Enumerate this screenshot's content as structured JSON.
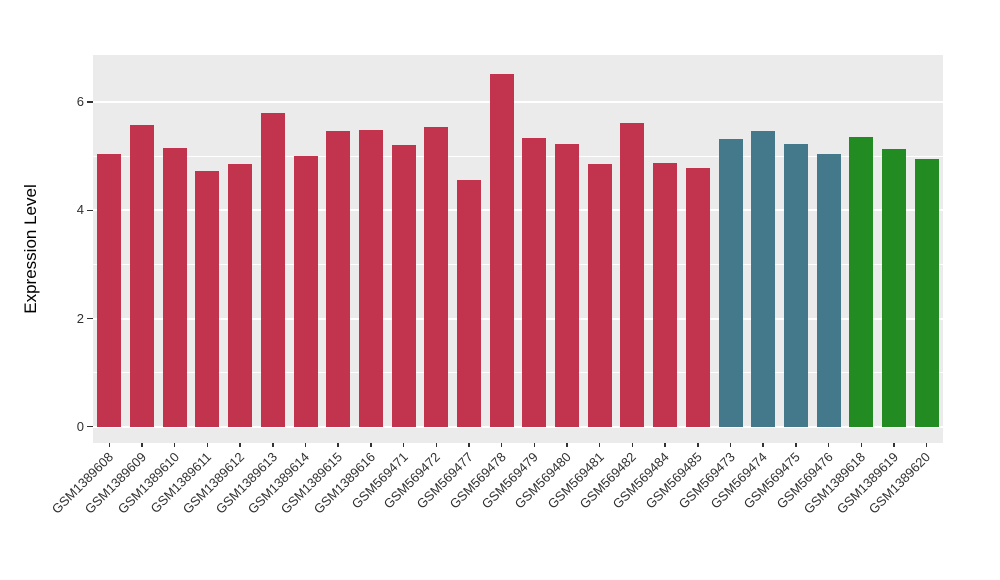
{
  "chart_data": {
    "type": "bar",
    "title": "",
    "xlabel": "",
    "ylabel": "Expression Level",
    "ylim": [
      0,
      6.5
    ],
    "yticks": [
      0,
      2,
      4,
      6
    ],
    "yticks_minor": [
      1,
      3,
      5
    ],
    "grid": "on",
    "legend": "none",
    "categories": [
      "GSM1389608",
      "GSM1389609",
      "GSM1389610",
      "GSM1389611",
      "GSM1389612",
      "GSM1389613",
      "GSM1389614",
      "GSM1389615",
      "GSM1389616",
      "GSM569471",
      "GSM569472",
      "GSM569477",
      "GSM569478",
      "GSM569479",
      "GSM569480",
      "GSM569481",
      "GSM569482",
      "GSM569484",
      "GSM569485",
      "GSM569473",
      "GSM569474",
      "GSM569475",
      "GSM569476",
      "GSM1389618",
      "GSM1389619",
      "GSM1389620"
    ],
    "values": [
      5.05,
      5.58,
      5.15,
      4.73,
      4.86,
      5.8,
      5.0,
      5.47,
      5.48,
      5.21,
      5.54,
      4.56,
      6.52,
      5.34,
      5.22,
      4.86,
      5.62,
      4.87,
      4.79,
      5.31,
      5.47,
      5.22,
      5.05,
      5.36,
      5.13,
      4.95
    ],
    "groups": [
      "red",
      "red",
      "red",
      "red",
      "red",
      "red",
      "red",
      "red",
      "red",
      "red",
      "red",
      "red",
      "red",
      "red",
      "red",
      "red",
      "red",
      "red",
      "red",
      "teal",
      "teal",
      "teal",
      "teal",
      "green",
      "green",
      "green"
    ]
  },
  "colors": {
    "background": "#FFFFFF",
    "panel": "#EBEBEB",
    "grid": "#FFFFFF",
    "axis_text": "#303030",
    "tick": "#333333",
    "red": "#C2334D",
    "teal": "#44798C",
    "green": "#228B22"
  }
}
